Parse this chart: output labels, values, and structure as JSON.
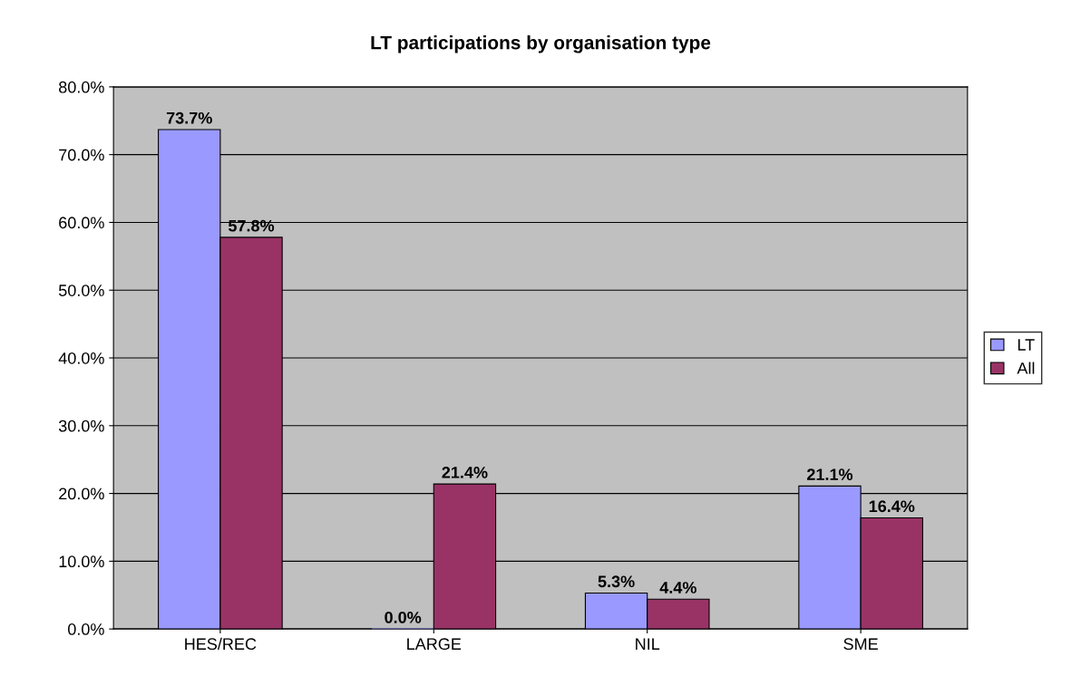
{
  "chart_data": {
    "type": "bar",
    "title": "LT participations by organisation type",
    "categories": [
      "HES/REC",
      "LARGE",
      "NIL",
      "SME"
    ],
    "series": [
      {
        "name": "LT",
        "color": "#9999ff",
        "values": [
          73.7,
          0.0,
          5.3,
          21.1
        ],
        "value_labels": [
          "73.7%",
          "0.0%",
          "5.3%",
          "21.1%"
        ]
      },
      {
        "name": "All",
        "color": "#993366",
        "values": [
          57.8,
          21.4,
          4.4,
          16.4
        ],
        "value_labels": [
          "57.8%",
          "21.4%",
          "4.4%",
          "16.4%"
        ]
      }
    ],
    "ylim": [
      0,
      80
    ],
    "yticks": [
      {
        "value": 0,
        "label": "0.0%"
      },
      {
        "value": 10,
        "label": "10.0%"
      },
      {
        "value": 20,
        "label": "20.0%"
      },
      {
        "value": 30,
        "label": "30.0%"
      },
      {
        "value": 40,
        "label": "40.0%"
      },
      {
        "value": 50,
        "label": "50.0%"
      },
      {
        "value": 60,
        "label": "60.0%"
      },
      {
        "value": 70,
        "label": "70.0%"
      },
      {
        "value": 80,
        "label": "80.0%"
      }
    ],
    "grid": "y",
    "legend": "right"
  }
}
